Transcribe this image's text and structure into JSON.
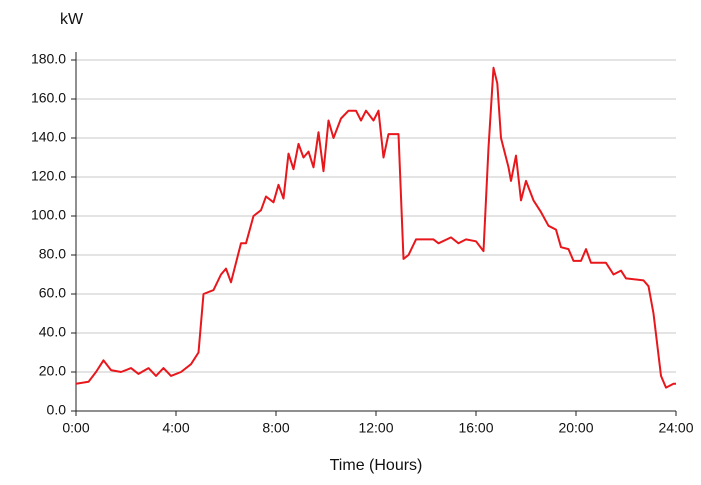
{
  "chart_data": {
    "type": "line",
    "y_unit": "kW",
    "x_label": "Time (Hours)",
    "xlim": [
      0,
      24
    ],
    "xticks": [
      {
        "value": 0,
        "label": "0:00"
      },
      {
        "value": 4,
        "label": "4:00"
      },
      {
        "value": 8,
        "label": "8:00"
      },
      {
        "value": 12,
        "label": "12:00"
      },
      {
        "value": 16,
        "label": "16:00"
      },
      {
        "value": 20,
        "label": "20:00"
      },
      {
        "value": 24,
        "label": "24:00"
      }
    ],
    "ylim": [
      0,
      180
    ],
    "yticks": [
      {
        "value": 0,
        "label": "0.0"
      },
      {
        "value": 20,
        "label": "20.0"
      },
      {
        "value": 40,
        "label": "40.0"
      },
      {
        "value": 60,
        "label": "60.0"
      },
      {
        "value": 80,
        "label": "80.0"
      },
      {
        "value": 100,
        "label": "100.0"
      },
      {
        "value": 120,
        "label": "120.0"
      },
      {
        "value": 140,
        "label": "140.0"
      },
      {
        "value": 160,
        "label": "160.0"
      },
      {
        "value": 180,
        "label": "180.0"
      }
    ],
    "grid": true,
    "color": "#e8171c",
    "x": [
      0,
      0.5,
      0.8,
      1.1,
      1.4,
      1.8,
      2.2,
      2.5,
      2.9,
      3.2,
      3.5,
      3.8,
      4.2,
      4.6,
      4.9,
      5.1,
      5.5,
      5.8,
      6.0,
      6.2,
      6.6,
      6.8,
      7.1,
      7.4,
      7.6,
      7.9,
      8.1,
      8.3,
      8.5,
      8.7,
      8.9,
      9.1,
      9.3,
      9.5,
      9.7,
      9.9,
      10.1,
      10.3,
      10.6,
      10.9,
      11.2,
      11.4,
      11.6,
      11.9,
      12.1,
      12.3,
      12.5,
      12.9,
      13.1,
      13.3,
      13.6,
      14.3,
      14.5,
      15.0,
      15.3,
      15.6,
      16.0,
      16.3,
      16.5,
      16.7,
      16.85,
      17.0,
      17.3,
      17.4,
      17.6,
      17.8,
      18.0,
      18.3,
      18.6,
      18.9,
      19.2,
      19.4,
      19.7,
      19.9,
      20.2,
      20.4,
      20.6,
      21.2,
      21.5,
      21.8,
      22.0,
      22.7,
      22.9,
      23.1,
      23.4,
      23.6,
      23.9,
      24
    ],
    "values": [
      14,
      15,
      20,
      26,
      21,
      20,
      22,
      19,
      22,
      18,
      22,
      18,
      20,
      24,
      30,
      60,
      62,
      70,
      73,
      66,
      86,
      86,
      100,
      103,
      110,
      107,
      116,
      109,
      132,
      124,
      137,
      130,
      133,
      125,
      143,
      123,
      149,
      140,
      150,
      154,
      154,
      149,
      154,
      149,
      154,
      130,
      142,
      142,
      78,
      80,
      88,
      88,
      86,
      89,
      86,
      88,
      87,
      82,
      135,
      176,
      168,
      140,
      125,
      118,
      131,
      108,
      118,
      108,
      102,
      95,
      93,
      84,
      83,
      77,
      77,
      83,
      76,
      76,
      70,
      72,
      68,
      67,
      64,
      50,
      18,
      12,
      14,
      14
    ]
  }
}
